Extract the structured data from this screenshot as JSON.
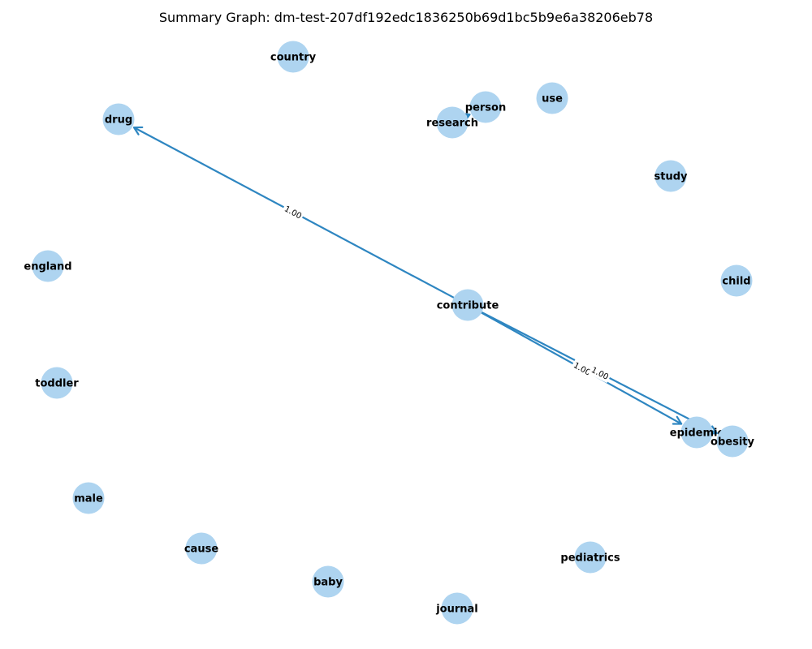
{
  "title": "Summary Graph: dm-test-207df192edc1836250b69d1bc5b9e6a38206eb78",
  "colors": {
    "node_fill": "#aed4f0",
    "edge": "#2e86c1",
    "text": "#000000"
  },
  "nodes": [
    {
      "id": "country",
      "label": "country"
    },
    {
      "id": "person",
      "label": "person"
    },
    {
      "id": "use",
      "label": "use"
    },
    {
      "id": "drug",
      "label": "drug"
    },
    {
      "id": "research",
      "label": "research"
    },
    {
      "id": "study",
      "label": "study"
    },
    {
      "id": "england",
      "label": "england"
    },
    {
      "id": "child",
      "label": "child"
    },
    {
      "id": "contribute",
      "label": "contribute"
    },
    {
      "id": "toddler",
      "label": "toddler"
    },
    {
      "id": "epidemic",
      "label": "epidemic"
    },
    {
      "id": "obesity",
      "label": "obesity"
    },
    {
      "id": "male",
      "label": "male"
    },
    {
      "id": "cause",
      "label": "cause"
    },
    {
      "id": "pediatrics",
      "label": "pediatrics"
    },
    {
      "id": "baby",
      "label": "baby"
    },
    {
      "id": "journal",
      "label": "journal"
    }
  ],
  "edges": [
    {
      "source": "contribute",
      "target": "drug",
      "weight": "1.00"
    },
    {
      "source": "contribute",
      "target": "epidemic",
      "weight": "1.00"
    },
    {
      "source": "contribute",
      "target": "obesity",
      "weight": "1.00"
    },
    {
      "source": "research",
      "target": "person",
      "weight": ""
    }
  ]
}
